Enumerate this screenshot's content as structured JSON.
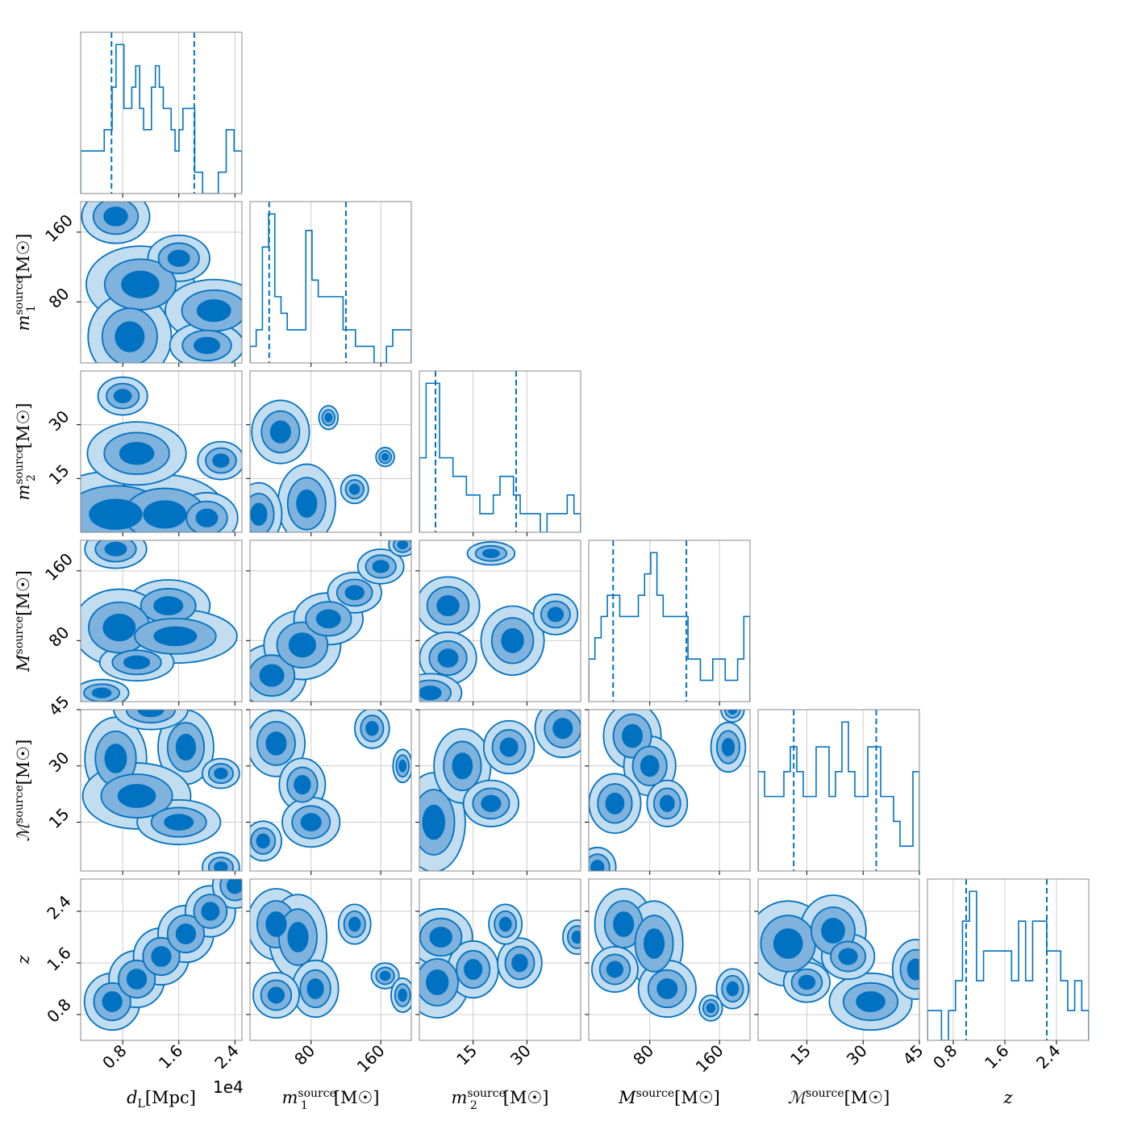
{
  "chart_data": {
    "type": "corner",
    "title": "",
    "colors": {
      "hist_line": "#0072C1",
      "level_outer": "#c2dcf0",
      "level_mid": "#7fb2dd",
      "level_inner": "#0072C1",
      "contour_line": "#0072C1",
      "grid": "#cccccc",
      "frame": "#888888"
    },
    "sci_multiplier": "1e4",
    "parameters": [
      {
        "key": "dL",
        "axis_label": "d_L[Mpc]",
        "range": [
          2000,
          25000
        ],
        "ticks": [
          8000,
          16000,
          24000
        ],
        "tick_labels": [
          "0.8",
          "1.6",
          "2.4"
        ],
        "quantiles": [
          6400,
          18200
        ],
        "hist": [
          2,
          2,
          2,
          2,
          2,
          2,
          3,
          3,
          5,
          7,
          7,
          4,
          4,
          5,
          6,
          4,
          3,
          3,
          5,
          6,
          5,
          4,
          4,
          3,
          2,
          3,
          4,
          4,
          4,
          1,
          1,
          0,
          0,
          0,
          0,
          1,
          1,
          3,
          3,
          2,
          2
        ],
        "blobs": []
      },
      {
        "key": "m1",
        "axis_label": "m_1^source[M☉]",
        "range": [
          10,
          195
        ],
        "ticks": [
          80,
          160
        ],
        "tick_labels": [
          "80",
          "160"
        ],
        "quantiles": [
          32,
          120
        ],
        "hist": [
          1,
          2,
          7,
          9,
          4,
          3,
          2,
          2,
          2,
          8,
          5,
          4,
          4,
          4,
          4,
          2,
          2,
          1,
          1,
          1,
          0,
          0,
          1,
          2,
          2,
          2
        ],
        "blobs": []
      },
      {
        "key": "m2",
        "axis_label": "m_2^source[M☉]",
        "range": [
          0,
          45
        ],
        "ticks": [
          15,
          30
        ],
        "tick_labels": [
          "15",
          "30"
        ],
        "quantiles": [
          4.5,
          27.0
        ],
        "hist": [
          4,
          8,
          8,
          4,
          4,
          3,
          3,
          2,
          2,
          1,
          1,
          2,
          3,
          3,
          2,
          1,
          1,
          1,
          0,
          1,
          1,
          1,
          2,
          1
        ],
        "blobs": []
      },
      {
        "key": "M",
        "axis_label": "M^source[M☉]",
        "range": [
          10,
          195
        ],
        "ticks": [
          80,
          160
        ],
        "tick_labels": [
          "80",
          "160"
        ],
        "quantiles": [
          38,
          122
        ],
        "hist": [
          2,
          3,
          4,
          5,
          5,
          4,
          4,
          4,
          5,
          6,
          7,
          5,
          4,
          4,
          4,
          4,
          2,
          2,
          1,
          1,
          2,
          2,
          1,
          1,
          2,
          4
        ],
        "blobs": []
      },
      {
        "key": "Mc",
        "axis_label": "ℳ^source[M☉]",
        "range": [
          2,
          45
        ],
        "ticks": [
          15,
          30,
          45
        ],
        "tick_labels": [
          "15",
          "30",
          "45"
        ],
        "quantiles": [
          11.5,
          33.5
        ],
        "hist": [
          4,
          3,
          3,
          3,
          4,
          5,
          4,
          3,
          3,
          5,
          5,
          3,
          4,
          6,
          4,
          3,
          3,
          5,
          5,
          3,
          3,
          2,
          1,
          1,
          4
        ],
        "blobs": []
      },
      {
        "key": "z",
        "axis_label": "z",
        "range": [
          0.4,
          2.9
        ],
        "ticks": [
          0.8,
          1.6,
          2.4
        ],
        "tick_labels": [
          "0.8",
          "1.6",
          "2.4"
        ],
        "quantiles": [
          1.0,
          2.25
        ],
        "hist": [
          1,
          1,
          0,
          1,
          2,
          4,
          5,
          2,
          3,
          3,
          3,
          3,
          2,
          4,
          2,
          4,
          4,
          3,
          3,
          2,
          1,
          2,
          1
        ],
        "blobs": []
      }
    ],
    "pairs": [
      {
        "row": 1,
        "col": 0,
        "blobs": [
          [
            7000,
            178,
            2200,
            14,
            1
          ],
          [
            10500,
            100,
            3500,
            20,
            1
          ],
          [
            16000,
            130,
            2000,
            12,
            1
          ],
          [
            21000,
            70,
            3500,
            18,
            0.9
          ],
          [
            9000,
            40,
            3000,
            25,
            0.9
          ],
          [
            20000,
            30,
            3000,
            15,
            0.8
          ]
        ]
      },
      {
        "row": 2,
        "col": 0,
        "blobs": [
          [
            7000,
            5,
            4500,
            5,
            1.1
          ],
          [
            14000,
            5,
            4000,
            5,
            1
          ],
          [
            20000,
            4,
            2500,
            4,
            0.8
          ],
          [
            10000,
            22,
            4000,
            5,
            0.8
          ],
          [
            8000,
            38,
            2000,
            3,
            0.8
          ],
          [
            22000,
            20,
            2500,
            4,
            0.6
          ]
        ]
      },
      {
        "row": 3,
        "col": 0,
        "blobs": [
          [
            7000,
            185,
            2000,
            10,
            1
          ],
          [
            14500,
            120,
            3000,
            15,
            0.9
          ],
          [
            7500,
            95,
            3000,
            20,
            1
          ],
          [
            15500,
            85,
            4000,
            14,
            1
          ],
          [
            10000,
            55,
            3000,
            12,
            0.8
          ],
          [
            5000,
            20,
            2500,
            10,
            0.7
          ]
        ]
      },
      {
        "row": 4,
        "col": 0,
        "blobs": [
          [
            7000,
            32,
            2000,
            5,
            1
          ],
          [
            17000,
            35,
            2000,
            5,
            0.9
          ],
          [
            10000,
            22,
            3500,
            4,
            1
          ],
          [
            16000,
            15,
            3000,
            3,
            0.9
          ],
          [
            12000,
            45,
            3000,
            3,
            0.8
          ],
          [
            22000,
            28,
            2000,
            3,
            0.6
          ],
          [
            22000,
            3,
            2000,
            3,
            0.6
          ]
        ]
      },
      {
        "row": 5,
        "col": 0,
        "blobs": [
          [
            6500,
            1.0,
            1800,
            0.2,
            1
          ],
          [
            10000,
            1.35,
            1800,
            0.2,
            1
          ],
          [
            13500,
            1.7,
            1800,
            0.2,
            1
          ],
          [
            17000,
            2.05,
            1800,
            0.2,
            1
          ],
          [
            20500,
            2.4,
            1800,
            0.2,
            0.9
          ],
          [
            24000,
            2.8,
            1800,
            0.2,
            0.8
          ]
        ]
      },
      {
        "row": 2,
        "col": 1,
        "blobs": [
          [
            45,
            28,
            15,
            4,
            1
          ],
          [
            75,
            8,
            15,
            5,
            1
          ],
          [
            20,
            5,
            12,
            4,
            1
          ],
          [
            165,
            21,
            8,
            2,
            0.6
          ],
          [
            100,
            32,
            10,
            3,
            0.5
          ],
          [
            130,
            12,
            12,
            3,
            0.6
          ]
        ]
      },
      {
        "row": 3,
        "col": 1,
        "blobs": [
          [
            35,
            40,
            20,
            18,
            0.9
          ],
          [
            70,
            75,
            20,
            18,
            1
          ],
          [
            100,
            105,
            20,
            15,
            0.9
          ],
          [
            130,
            135,
            20,
            15,
            0.7
          ],
          [
            160,
            165,
            20,
            15,
            0.6
          ],
          [
            185,
            190,
            12,
            10,
            0.6
          ]
        ]
      },
      {
        "row": 4,
        "col": 1,
        "blobs": [
          [
            40,
            36,
            15,
            4,
            1
          ],
          [
            70,
            25,
            15,
            4,
            0.8
          ],
          [
            80,
            15,
            15,
            3,
            1
          ],
          [
            25,
            10,
            12,
            3,
            0.8
          ],
          [
            150,
            40,
            15,
            4,
            0.6
          ],
          [
            185,
            30,
            10,
            4,
            0.5
          ]
        ]
      },
      {
        "row": 5,
        "col": 1,
        "blobs": [
          [
            40,
            2.2,
            15,
            0.25,
            1
          ],
          [
            65,
            2.0,
            15,
            0.3,
            1
          ],
          [
            85,
            1.2,
            12,
            0.2,
            1
          ],
          [
            130,
            2.2,
            12,
            0.2,
            0.7
          ],
          [
            165,
            1.4,
            12,
            0.15,
            0.6
          ],
          [
            185,
            1.1,
            10,
            0.2,
            0.6
          ],
          [
            40,
            1.1,
            15,
            0.2,
            0.8
          ]
        ]
      },
      {
        "row": 3,
        "col": 2,
        "blobs": [
          [
            8,
            120,
            4,
            15,
            1
          ],
          [
            26,
            80,
            4,
            18,
            1
          ],
          [
            8,
            60,
            4,
            15,
            0.9
          ],
          [
            38,
            110,
            4,
            15,
            0.7
          ],
          [
            3,
            20,
            4,
            10,
            1
          ],
          [
            20,
            180,
            5,
            10,
            0.6
          ]
        ]
      },
      {
        "row": 4,
        "col": 2,
        "blobs": [
          [
            4,
            15,
            4,
            6,
            1
          ],
          [
            12,
            30,
            4,
            5,
            0.9
          ],
          [
            25,
            35,
            4,
            4,
            0.8
          ],
          [
            40,
            40,
            5,
            5,
            0.7
          ],
          [
            20,
            20,
            5,
            4,
            0.7
          ]
        ]
      },
      {
        "row": 5,
        "col": 2,
        "blobs": [
          [
            5,
            1.3,
            4,
            0.25,
            1
          ],
          [
            6,
            2.0,
            4,
            0.2,
            1
          ],
          [
            15,
            1.5,
            4,
            0.25,
            0.8
          ],
          [
            28,
            1.6,
            4,
            0.25,
            0.7
          ],
          [
            24,
            2.2,
            3,
            0.2,
            0.7
          ],
          [
            44,
            2.0,
            3,
            0.2,
            0.6
          ]
        ]
      },
      {
        "row": 4,
        "col": 3,
        "blobs": [
          [
            60,
            38,
            15,
            4,
            1
          ],
          [
            80,
            30,
            15,
            4,
            0.9
          ],
          [
            40,
            20,
            15,
            4,
            0.9
          ],
          [
            20,
            3,
            12,
            3,
            0.8
          ],
          [
            100,
            20,
            15,
            4,
            0.7
          ],
          [
            170,
            35,
            15,
            5,
            0.6
          ],
          [
            175,
            45,
            12,
            3,
            0.5
          ]
        ]
      },
      {
        "row": 5,
        "col": 3,
        "blobs": [
          [
            50,
            2.2,
            15,
            0.25,
            1
          ],
          [
            85,
            1.9,
            15,
            0.3,
            1
          ],
          [
            100,
            1.2,
            15,
            0.2,
            1
          ],
          [
            40,
            1.5,
            15,
            0.2,
            0.8
          ],
          [
            175,
            1.2,
            12,
            0.2,
            0.7
          ],
          [
            150,
            0.9,
            10,
            0.15,
            0.6
          ]
        ]
      },
      {
        "row": 5,
        "col": 4,
        "blobs": [
          [
            10,
            1.9,
            5,
            0.3,
            1
          ],
          [
            22,
            2.1,
            4,
            0.25,
            1
          ],
          [
            32,
            1.0,
            5,
            0.2,
            1
          ],
          [
            26,
            1.7,
            4,
            0.2,
            0.8
          ],
          [
            44,
            1.5,
            4,
            0.3,
            0.7
          ],
          [
            15,
            1.3,
            4,
            0.2,
            0.7
          ]
        ]
      }
    ]
  }
}
